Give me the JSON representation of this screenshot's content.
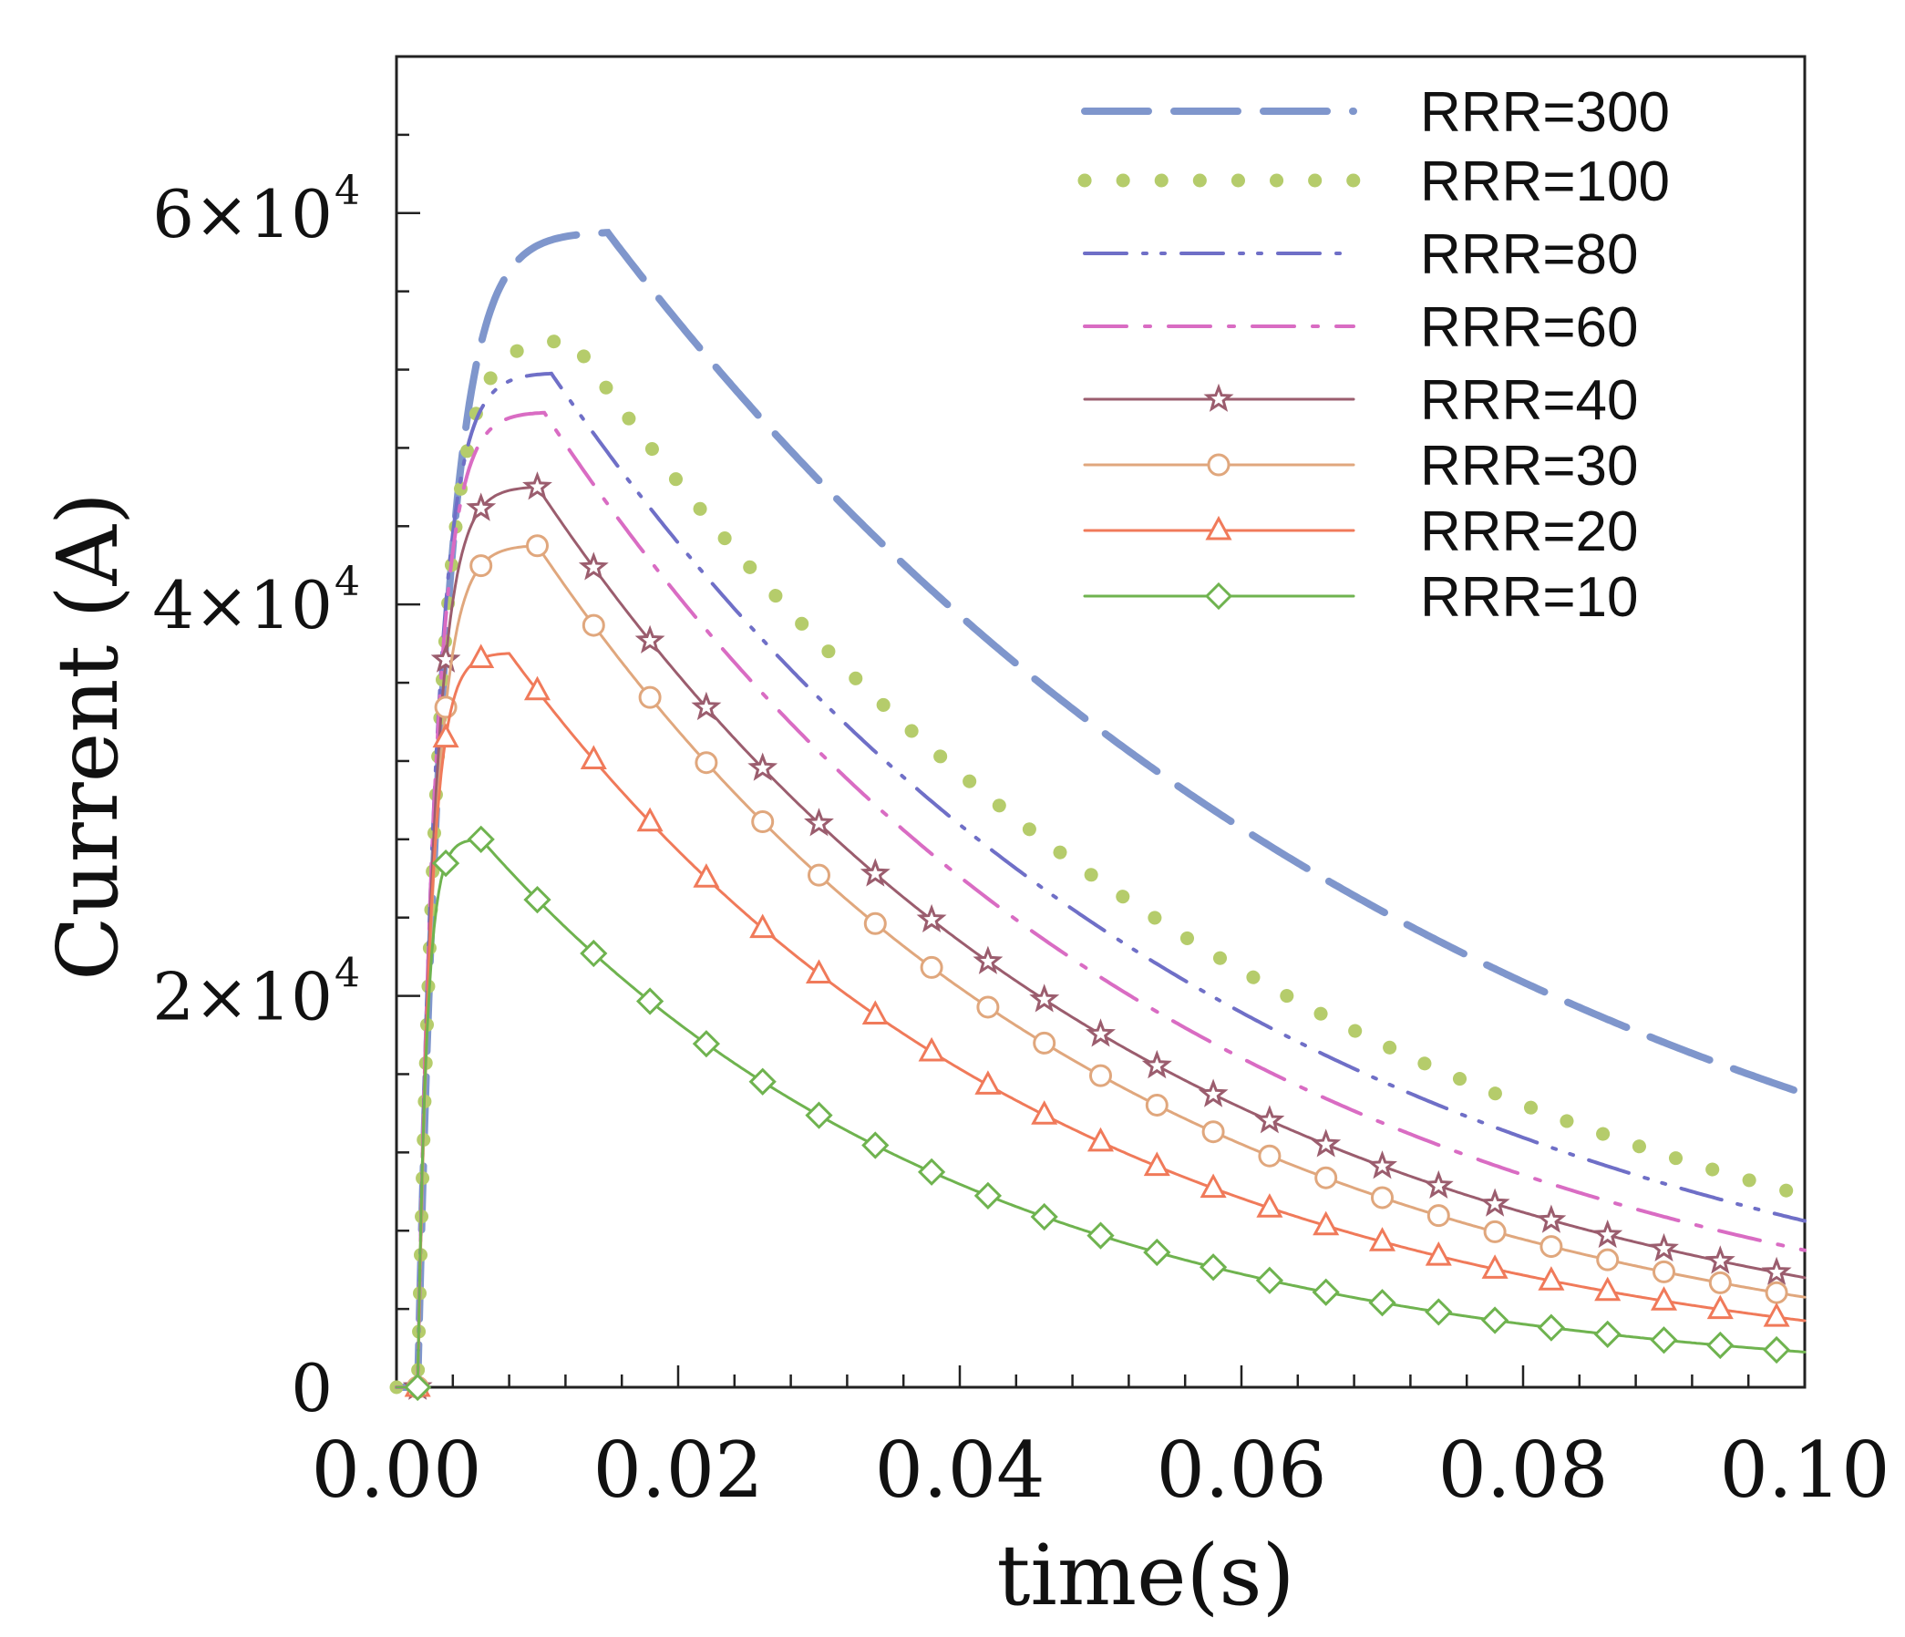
{
  "chart_data": {
    "type": "line",
    "title": "",
    "xlabel": "time(s)",
    "ylabel": "Current (A)",
    "xlim": [
      0.0,
      0.1
    ],
    "ylim": [
      0,
      68000
    ],
    "x_ticks": [
      0.0,
      0.02,
      0.04,
      0.06,
      0.08,
      0.1
    ],
    "x_tick_labels": [
      "0.00",
      "0.02",
      "0.04",
      "0.06",
      "0.08",
      "0.10"
    ],
    "y_ticks": [
      0,
      20000,
      40000,
      60000
    ],
    "y_tick_labels": [
      {
        "mant": "0",
        "exp": ""
      },
      {
        "mant": "2×10",
        "exp": "4"
      },
      {
        "mant": "4×10",
        "exp": "4"
      },
      {
        "mant": "6×10",
        "exp": "4"
      }
    ],
    "x_minor_step": 0.004,
    "y_minor_step": 4000,
    "grid": false,
    "legend_position": "top-right",
    "series": [
      {
        "name": "RRR=300",
        "color": "#7f96cc",
        "style": "dash-long",
        "marker": "none",
        "peak": 59000,
        "tpeak": 0.015,
        "end": 15000
      },
      {
        "name": "RRR=100",
        "color": "#b5cc6b",
        "style": "dots",
        "marker": "none",
        "peak": 53500,
        "tpeak": 0.0125,
        "end": 9800
      },
      {
        "name": "RRR=80",
        "color": "#6f6fc7",
        "style": "dash-dot-dot",
        "marker": "none",
        "peak": 51800,
        "tpeak": 0.011,
        "end": 8500
      },
      {
        "name": "RRR=60",
        "color": "#d96cc3",
        "style": "dash-dot",
        "marker": "none",
        "peak": 49800,
        "tpeak": 0.0105,
        "end": 7000
      },
      {
        "name": "RRR=40",
        "color": "#9b5d6e",
        "style": "solid",
        "marker": "star",
        "peak": 46000,
        "tpeak": 0.01,
        "end": 5600
      },
      {
        "name": "RRR=30",
        "color": "#e0a77d",
        "style": "solid",
        "marker": "circle",
        "peak": 43000,
        "tpeak": 0.01,
        "end": 4600
      },
      {
        "name": "RRR=20",
        "color": "#f07a5a",
        "style": "solid",
        "marker": "triangle",
        "peak": 37500,
        "tpeak": 0.008,
        "end": 3400
      },
      {
        "name": "RRR=10",
        "color": "#6fb34f",
        "style": "solid",
        "marker": "diamond",
        "peak": 28000,
        "tpeak": 0.006,
        "end": 1800
      }
    ]
  }
}
